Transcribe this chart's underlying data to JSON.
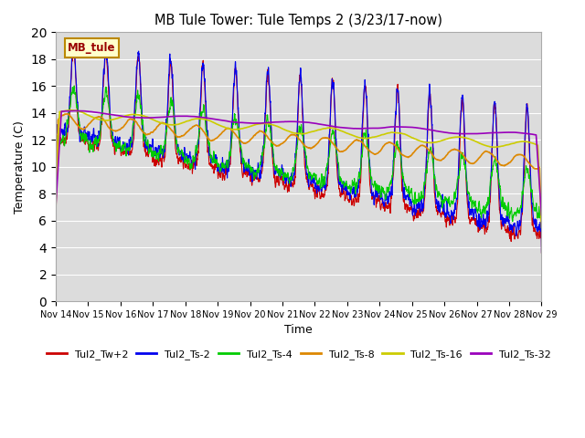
{
  "title": "MB Tule Tower: Tule Temps 2 (3/23/17-now)",
  "xlabel": "Time",
  "ylabel": "Temperature (C)",
  "ylim": [
    0,
    20
  ],
  "yticks": [
    0,
    2,
    4,
    6,
    8,
    10,
    12,
    14,
    16,
    18,
    20
  ],
  "bg_color": "#dcdcdc",
  "fig_color": "#ffffff",
  "series_colors": {
    "Tul2_Tw+2": "#cc0000",
    "Tul2_Ts-2": "#0000ee",
    "Tul2_Ts-4": "#00cc00",
    "Tul2_Ts-8": "#dd8800",
    "Tul2_Ts-16": "#cccc00",
    "Tul2_Ts-32": "#9900bb"
  },
  "legend_label": "MB_tule",
  "legend_bg": "#ffffcc",
  "legend_edge": "#bb8800",
  "start_day": 14,
  "end_day": 29
}
